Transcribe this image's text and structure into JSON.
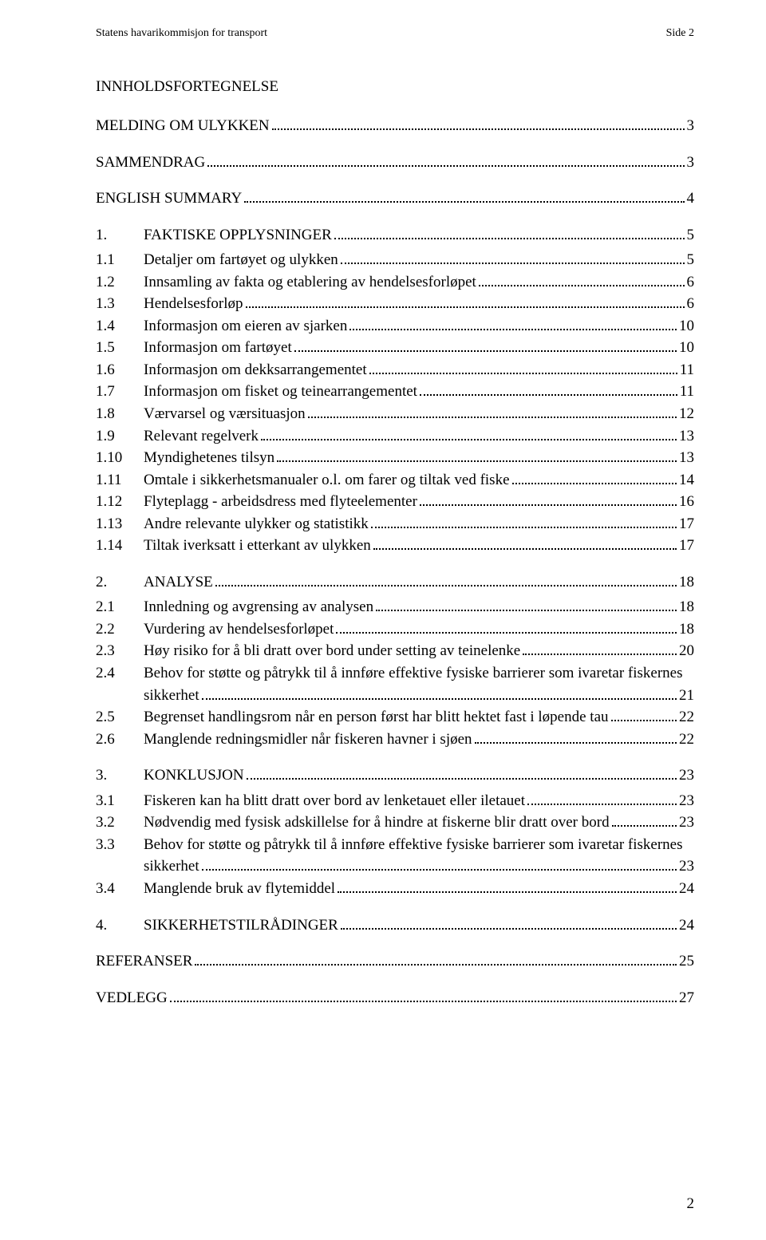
{
  "header": {
    "left": "Statens havarikommisjon for transport",
    "right": "Side 2"
  },
  "toc_title": "INNHOLDSFORTEGNELSE",
  "entries": [
    {
      "num": "",
      "label": "MELDING OM ULYKKEN",
      "page": "3",
      "gapAfter": "block"
    },
    {
      "num": "",
      "label": "SAMMENDRAG",
      "page": "3",
      "gapAfter": "block"
    },
    {
      "num": "",
      "label": "ENGLISH SUMMARY",
      "page": "4",
      "gapAfter": "block"
    },
    {
      "num": "1.",
      "label": "FAKTISKE OPPLYSNINGER",
      "page": "5",
      "gapAfter": "small"
    },
    {
      "num": "1.1",
      "label": "Detaljer om fartøyet og ulykken",
      "page": "5"
    },
    {
      "num": "1.2",
      "label": "Innsamling av fakta og etablering av hendelsesforløpet",
      "page": "6"
    },
    {
      "num": "1.3",
      "label": "Hendelsesforløp",
      "page": "6"
    },
    {
      "num": "1.4",
      "label": "Informasjon om eieren av sjarken",
      "page": "10"
    },
    {
      "num": "1.5",
      "label": "Informasjon om fartøyet",
      "page": "10"
    },
    {
      "num": "1.6",
      "label": "Informasjon om dekksarrangementet",
      "page": "11"
    },
    {
      "num": "1.7",
      "label": "Informasjon om fisket og teinearrangementet",
      "page": "11"
    },
    {
      "num": "1.8",
      "label": "Værvarsel og værsituasjon",
      "page": "12"
    },
    {
      "num": "1.9",
      "label": "Relevant regelverk",
      "page": "13"
    },
    {
      "num": "1.10",
      "label": "Myndighetenes tilsyn",
      "page": "13"
    },
    {
      "num": "1.11",
      "label": "Omtale i sikkerhetsmanualer o.l. om farer og tiltak ved fiske",
      "page": "14"
    },
    {
      "num": "1.12",
      "label": "Flyteplagg - arbeidsdress med flyteelementer",
      "page": "16"
    },
    {
      "num": "1.13",
      "label": "Andre relevante ulykker og statistikk",
      "page": "17"
    },
    {
      "num": "1.14",
      "label": "Tiltak iverksatt i etterkant av ulykken",
      "page": "17",
      "gapAfter": "block"
    },
    {
      "num": "2.",
      "label": "ANALYSE",
      "page": "18",
      "gapAfter": "small"
    },
    {
      "num": "2.1",
      "label": "Innledning og avgrensing av analysen",
      "page": "18"
    },
    {
      "num": "2.2",
      "label": "Vurdering av hendelsesforløpet",
      "page": "18"
    },
    {
      "num": "2.3",
      "label": "Høy risiko for å bli dratt over bord under setting av teinelenke",
      "page": "20"
    },
    {
      "num": "2.4",
      "label": "Behov for støtte og påtrykk til å innføre effektive fysiske barrierer som ivaretar fiskernes",
      "page": "",
      "multiline_top": true
    },
    {
      "num": "",
      "label": "sikkerhet",
      "page": "21",
      "indent": true
    },
    {
      "num": "2.5",
      "label": "Begrenset handlingsrom når en person først har blitt hektet fast i løpende tau",
      "page": "22"
    },
    {
      "num": "2.6",
      "label": "Manglende redningsmidler når fiskeren havner i sjøen",
      "page": "22",
      "gapAfter": "block"
    },
    {
      "num": "3.",
      "label": "KONKLUSJON",
      "page": "23",
      "gapAfter": "small"
    },
    {
      "num": "3.1",
      "label": "Fiskeren kan ha blitt dratt over bord av lenketauet eller iletauet",
      "page": "23"
    },
    {
      "num": "3.2",
      "label": "Nødvendig med fysisk adskillelse for å hindre at fiskerne blir dratt over bord",
      "page": "23"
    },
    {
      "num": "3.3",
      "label": "Behov for støtte og påtrykk til å innføre effektive fysiske barrierer som ivaretar fiskernes",
      "page": "",
      "multiline_top": true
    },
    {
      "num": "",
      "label": "sikkerhet",
      "page": "23",
      "indent": true
    },
    {
      "num": "3.4",
      "label": "Manglende bruk av flytemiddel",
      "page": "24",
      "gapAfter": "block"
    },
    {
      "num": "4.",
      "label": "SIKKERHETSTILRÅDINGER",
      "page": "24",
      "gapAfter": "block"
    },
    {
      "num": "",
      "label": "REFERANSER",
      "page": "25",
      "gapAfter": "block"
    },
    {
      "num": "",
      "label": "VEDLEGG",
      "page": "27"
    }
  ],
  "footer_page": "2"
}
